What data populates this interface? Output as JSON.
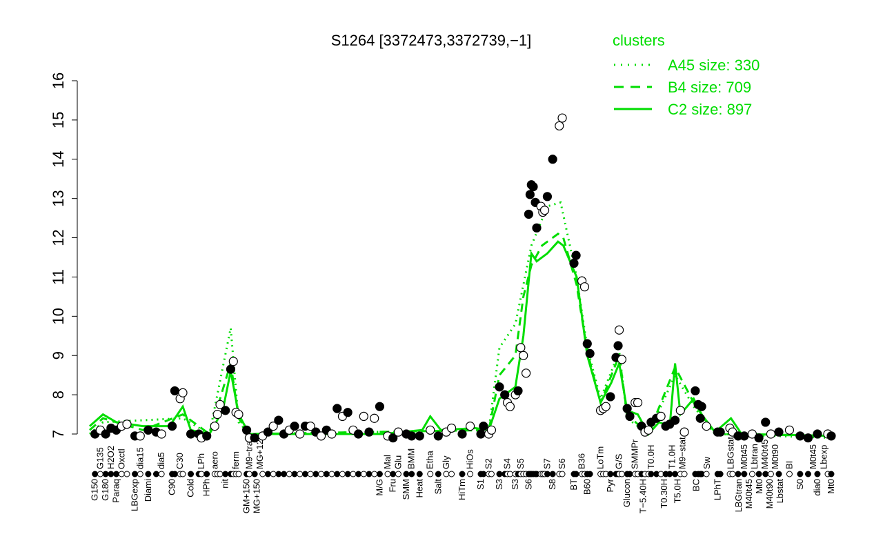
{
  "chart_data": {
    "type": "scatter",
    "title": "S1264 [3372473,3372739,−1]",
    "xlabel": "",
    "ylabel": "",
    "ylim": [
      7,
      16
    ],
    "xlim": [
      0,
      280
    ],
    "yticks": [
      "7",
      "8",
      "9",
      "10",
      "11",
      "12",
      "13",
      "14",
      "15",
      "16"
    ],
    "grid": false,
    "colors": {
      "points_filled": "#000000",
      "points_open": "#ffffff",
      "clusters": "#00dd00"
    },
    "legend": {
      "title": "clusters",
      "placement": "top-right",
      "entries": [
        {
          "label": "A45 size: 330",
          "style": "dotted"
        },
        {
          "label": "B4 size: 709",
          "style": "dashed"
        },
        {
          "label": "C2 size: 897",
          "style": "solid"
        }
      ]
    },
    "points": [
      [
        2,
        7.0,
        1
      ],
      [
        4,
        7.1,
        0
      ],
      [
        6,
        7.0,
        1
      ],
      [
        8,
        7.15,
        1
      ],
      [
        10,
        7.1,
        1
      ],
      [
        12,
        7.2,
        0
      ],
      [
        14,
        7.25,
        0
      ],
      [
        17,
        6.95,
        1
      ],
      [
        19,
        6.95,
        0
      ],
      [
        22,
        7.1,
        1
      ],
      [
        25,
        7.05,
        1
      ],
      [
        27,
        7.0,
        0
      ],
      [
        31,
        7.2,
        1
      ],
      [
        32,
        8.1,
        1
      ],
      [
        34,
        7.9,
        0
      ],
      [
        35,
        8.05,
        0
      ],
      [
        38,
        7.0,
        1
      ],
      [
        41,
        7.0,
        1
      ],
      [
        42,
        6.9,
        0
      ],
      [
        44,
        6.95,
        1
      ],
      [
        47,
        7.2,
        0
      ],
      [
        48,
        7.5,
        0
      ],
      [
        49,
        7.75,
        0
      ],
      [
        51,
        7.6,
        1
      ],
      [
        53,
        8.65,
        1
      ],
      [
        54,
        8.85,
        0
      ],
      [
        55,
        7.55,
        0
      ],
      [
        56,
        7.5,
        0
      ],
      [
        59,
        7.1,
        1
      ],
      [
        60,
        6.9,
        0
      ],
      [
        62,
        6.9,
        1
      ],
      [
        65,
        6.95,
        0
      ],
      [
        67,
        7.05,
        1
      ],
      [
        69,
        7.2,
        0
      ],
      [
        71,
        7.35,
        1
      ],
      [
        73,
        7.0,
        1
      ],
      [
        75,
        7.1,
        0
      ],
      [
        77,
        7.2,
        1
      ],
      [
        79,
        7.0,
        0
      ],
      [
        81,
        7.2,
        1
      ],
      [
        83,
        7.2,
        0
      ],
      [
        85,
        7.05,
        1
      ],
      [
        87,
        6.95,
        0
      ],
      [
        89,
        7.1,
        1
      ],
      [
        91,
        7.0,
        0
      ],
      [
        93,
        7.65,
        1
      ],
      [
        95,
        7.45,
        0
      ],
      [
        97,
        7.55,
        1
      ],
      [
        99,
        7.1,
        0
      ],
      [
        101,
        7.0,
        1
      ],
      [
        103,
        7.45,
        0
      ],
      [
        105,
        7.05,
        1
      ],
      [
        107,
        7.4,
        0
      ],
      [
        109,
        7.7,
        1
      ],
      [
        112,
        6.95,
        0
      ],
      [
        114,
        6.9,
        1
      ],
      [
        116,
        7.05,
        0
      ],
      [
        119,
        7.0,
        1
      ],
      [
        121,
        6.95,
        1
      ],
      [
        124,
        6.95,
        1
      ],
      [
        128,
        7.1,
        0
      ],
      [
        131,
        6.95,
        1
      ],
      [
        134,
        7.05,
        0
      ],
      [
        136,
        7.15,
        0
      ],
      [
        140,
        7.0,
        1
      ],
      [
        143,
        7.2,
        0
      ],
      [
        147,
        7.0,
        1
      ],
      [
        148,
        7.2,
        1
      ],
      [
        150,
        7.0,
        0
      ],
      [
        151,
        7.1,
        0
      ],
      [
        154,
        8.2,
        1
      ],
      [
        156,
        8.0,
        1
      ],
      [
        157,
        7.8,
        0
      ],
      [
        158,
        7.7,
        0
      ],
      [
        160,
        8.0,
        0
      ],
      [
        161,
        8.1,
        1
      ],
      [
        162,
        9.2,
        0
      ],
      [
        163,
        9.0,
        0
      ],
      [
        164,
        8.55,
        0
      ],
      [
        165,
        12.6,
        1
      ],
      [
        165.5,
        13.1,
        1
      ],
      [
        166,
        13.35,
        1
      ],
      [
        166.7,
        13.3,
        1
      ],
      [
        167.5,
        12.9,
        1
      ],
      [
        168,
        12.25,
        1
      ],
      [
        169.6,
        12.8,
        0
      ],
      [
        170.3,
        12.65,
        0
      ],
      [
        171,
        12.7,
        0
      ],
      [
        172,
        13.05,
        1
      ],
      [
        174,
        14.0,
        1
      ],
      [
        176.5,
        14.85,
        0
      ],
      [
        177.6,
        15.05,
        0
      ],
      [
        182,
        11.35,
        1
      ],
      [
        182.8,
        11.55,
        1
      ],
      [
        185,
        10.9,
        0
      ],
      [
        186,
        10.75,
        0
      ],
      [
        187,
        9.3,
        1
      ],
      [
        188,
        9.05,
        1
      ],
      [
        192,
        7.6,
        0
      ],
      [
        193,
        7.65,
        0
      ],
      [
        194,
        7.7,
        0
      ],
      [
        195.7,
        7.95,
        1
      ],
      [
        197.8,
        8.95,
        1
      ],
      [
        198.6,
        9.25,
        1
      ],
      [
        199,
        9.65,
        0
      ],
      [
        200,
        8.9,
        0
      ],
      [
        202,
        7.65,
        1
      ],
      [
        203,
        7.45,
        1
      ],
      [
        205,
        7.8,
        0
      ],
      [
        206,
        7.8,
        0
      ],
      [
        207.4,
        7.2,
        1
      ],
      [
        208.7,
        7.05,
        0
      ],
      [
        210,
        7.1,
        0
      ],
      [
        211,
        7.3,
        1
      ],
      [
        213,
        7.4,
        1
      ],
      [
        214.7,
        7.45,
        0
      ],
      [
        216.5,
        7.2,
        1
      ],
      [
        218,
        7.25,
        1
      ],
      [
        220,
        7.35,
        1
      ],
      [
        222,
        7.6,
        0
      ],
      [
        223.5,
        7.05,
        0
      ],
      [
        227.6,
        8.1,
        1
      ],
      [
        228.7,
        7.75,
        1
      ],
      [
        229.5,
        7.4,
        1
      ],
      [
        230,
        7.7,
        1
      ],
      [
        231.8,
        7.2,
        0
      ],
      [
        236,
        7.05,
        1
      ],
      [
        237,
        7.05,
        1
      ],
      [
        240.6,
        7.15,
        0
      ],
      [
        241.6,
        7.05,
        0
      ],
      [
        243.7,
        6.95,
        1
      ],
      [
        246,
        6.95,
        1
      ],
      [
        249,
        7.0,
        0
      ],
      [
        251.5,
        6.9,
        1
      ],
      [
        254,
        7.3,
        1
      ],
      [
        256,
        7.0,
        0
      ],
      [
        259,
        7.05,
        1
      ],
      [
        263,
        7.1,
        0
      ],
      [
        267,
        6.95,
        1
      ],
      [
        270,
        6.9,
        1
      ],
      [
        273.5,
        7.0,
        1
      ],
      [
        277.4,
        7.0,
        0
      ],
      [
        278.7,
        6.95,
        1
      ]
    ],
    "cluster_lines": {
      "C2": [
        [
          0,
          7.2
        ],
        [
          5,
          7.5
        ],
        [
          10,
          7.3
        ],
        [
          20,
          7.2
        ],
        [
          30,
          7.2
        ],
        [
          35,
          7.7
        ],
        [
          38,
          7.1
        ],
        [
          45,
          7.0
        ],
        [
          50,
          7.6
        ],
        [
          53,
          8.6
        ],
        [
          56,
          7.5
        ],
        [
          60,
          7.0
        ],
        [
          70,
          7.0
        ],
        [
          110,
          7.0
        ],
        [
          125,
          7.1
        ],
        [
          128,
          7.45
        ],
        [
          132,
          7.1
        ],
        [
          145,
          7.15
        ],
        [
          150,
          7.1
        ],
        [
          154,
          7.9
        ],
        [
          160,
          8.2
        ],
        [
          163,
          9.5
        ],
        [
          166,
          11.6
        ],
        [
          168,
          11.4
        ],
        [
          172,
          11.6
        ],
        [
          176,
          11.9
        ],
        [
          178,
          11.8
        ],
        [
          183,
          11.0
        ],
        [
          187,
          9.0
        ],
        [
          192,
          7.8
        ],
        [
          196,
          8.3
        ],
        [
          199,
          8.8
        ],
        [
          202,
          7.6
        ],
        [
          206,
          7.5
        ],
        [
          210,
          7.0
        ],
        [
          214,
          7.3
        ],
        [
          218,
          7.2
        ],
        [
          220,
          8.8
        ],
        [
          222,
          7.5
        ],
        [
          227,
          7.9
        ],
        [
          230,
          7.5
        ],
        [
          235,
          7.05
        ],
        [
          241,
          7.4
        ],
        [
          245,
          7.0
        ],
        [
          280,
          6.95
        ]
      ],
      "B4": [
        [
          0,
          7.1
        ],
        [
          5,
          7.4
        ],
        [
          20,
          7.1
        ],
        [
          35,
          7.5
        ],
        [
          45,
          7.0
        ],
        [
          53,
          8.8
        ],
        [
          56,
          7.4
        ],
        [
          60,
          7.0
        ],
        [
          150,
          7.1
        ],
        [
          154,
          8.5
        ],
        [
          160,
          9.0
        ],
        [
          163,
          10.5
        ],
        [
          166,
          11.3
        ],
        [
          170,
          11.8
        ],
        [
          176,
          12.1
        ],
        [
          178,
          12.0
        ],
        [
          183,
          10.8
        ],
        [
          187,
          9.1
        ],
        [
          192,
          7.8
        ],
        [
          199,
          9.0
        ],
        [
          202,
          7.5
        ],
        [
          210,
          7.0
        ],
        [
          220,
          8.7
        ],
        [
          227,
          7.8
        ],
        [
          235,
          7.0
        ],
        [
          280,
          6.95
        ]
      ],
      "A45": [
        [
          0,
          7.0
        ],
        [
          5,
          7.3
        ],
        [
          35,
          7.4
        ],
        [
          45,
          7.0
        ],
        [
          53,
          9.7
        ],
        [
          56,
          7.3
        ],
        [
          60,
          7.0
        ],
        [
          150,
          7.1
        ],
        [
          154,
          9.2
        ],
        [
          160,
          9.8
        ],
        [
          163,
          10.8
        ],
        [
          166,
          11.8
        ],
        [
          172,
          12.8
        ],
        [
          177,
          12.9
        ],
        [
          183,
          11.0
        ],
        [
          187,
          9.2
        ],
        [
          192,
          7.9
        ],
        [
          199,
          9.1
        ],
        [
          202,
          7.4
        ],
        [
          210,
          7.0
        ],
        [
          220,
          8.5
        ],
        [
          227,
          7.7
        ],
        [
          235,
          7.0
        ],
        [
          280,
          6.9
        ]
      ]
    },
    "x_labels": [
      [
        2,
        "G150"
      ],
      [
        4,
        "G135"
      ],
      [
        6,
        "G180"
      ],
      [
        8,
        "H2O2"
      ],
      [
        10,
        "Paraq"
      ],
      [
        12,
        "Oxctl"
      ],
      [
        17,
        "LBGexp"
      ],
      [
        19,
        "dia15"
      ],
      [
        22,
        "Diami"
      ],
      [
        27,
        "dia5"
      ],
      [
        31,
        "C90"
      ],
      [
        34,
        "C30"
      ],
      [
        38,
        "Cold"
      ],
      [
        42,
        "LPh"
      ],
      [
        44,
        "HPh"
      ],
      [
        47,
        "aero"
      ],
      [
        51,
        "nit"
      ],
      [
        55,
        "ferm"
      ],
      [
        59,
        "GM+150"
      ],
      [
        60,
        "M9−tra"
      ],
      [
        62,
        "MG+150"
      ],
      [
        64,
        "MG+12"
      ],
      [
        109,
        "M/G"
      ],
      [
        112,
        "Mal"
      ],
      [
        114,
        "Fru"
      ],
      [
        116,
        "Glu"
      ],
      [
        119,
        "SMM"
      ],
      [
        121,
        "BMM"
      ],
      [
        124,
        "Heat"
      ],
      [
        128,
        "Etha"
      ],
      [
        131,
        "Salt"
      ],
      [
        134,
        "Gly"
      ],
      [
        140,
        "HiTm"
      ],
      [
        143,
        "HiOs"
      ],
      [
        147,
        "S1"
      ],
      [
        150,
        "S2"
      ],
      [
        154,
        "S3"
      ],
      [
        157,
        "S4"
      ],
      [
        160,
        "S3"
      ],
      [
        162,
        "S5"
      ],
      [
        165,
        "S6"
      ],
      [
        172,
        "S7"
      ],
      [
        174,
        "S8"
      ],
      [
        177.6,
        "S6"
      ],
      [
        182,
        "BT"
      ],
      [
        185,
        "B36"
      ],
      [
        187,
        "B60"
      ],
      [
        192,
        "LoTm"
      ],
      [
        195.7,
        "Pyr"
      ],
      [
        199,
        "G/S"
      ],
      [
        202,
        "Glucon"
      ],
      [
        205,
        "SMMPr"
      ],
      [
        208,
        "T−5.40H"
      ],
      [
        211,
        "T0.0H"
      ],
      [
        216,
        "T0.30H"
      ],
      [
        219,
        "T1.0H"
      ],
      [
        221,
        "T5.0H"
      ],
      [
        222,
        "M9−stat"
      ],
      [
        228,
        "BC"
      ],
      [
        232,
        "Sw"
      ],
      [
        236,
        "LPhT"
      ],
      [
        241,
        "LBGstat"
      ],
      [
        244,
        "LBGtran"
      ],
      [
        246,
        "M0t45"
      ],
      [
        247,
        "M40t45"
      ],
      [
        249,
        "Lbtran"
      ],
      [
        250,
        "Mt0"
      ],
      [
        251,
        "M40t45"
      ],
      [
        252,
        "M40t90"
      ],
      [
        254,
        "M0t90"
      ],
      [
        259,
        "Lbstat"
      ],
      [
        263,
        "BI"
      ],
      [
        267,
        "S0"
      ],
      [
        272,
        "M0t45"
      ],
      [
        273.5,
        "dia0"
      ],
      [
        276,
        "Lbexp"
      ],
      [
        278.7,
        "Mt0"
      ]
    ]
  }
}
